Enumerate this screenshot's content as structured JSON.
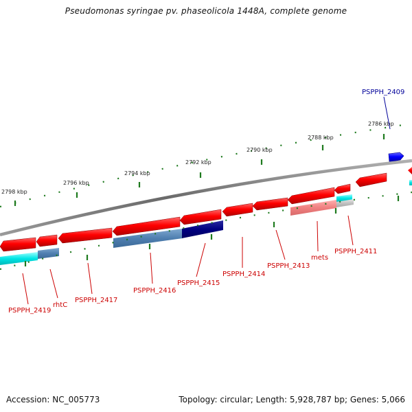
{
  "title": "Pseudomonas syringae pv. phaseolicola 1448A, complete genome",
  "footer": {
    "accession": "Accession: NC_005773",
    "summary": "Topology: circular; Length: 5,928,787 bp; Genes: 5,066"
  },
  "scale_labels": [
    "2798 kbp",
    "2796 kbp",
    "2794 kbp",
    "2792 kbp",
    "2790 kbp",
    "2788 kbp",
    "2786 kbp"
  ],
  "genes": [
    {
      "name": "PSPPH_2409",
      "strand": "forward",
      "color": "#0000cc"
    },
    {
      "name": "PSPPH_2411",
      "strand": "reverse",
      "color": "#cc0000"
    },
    {
      "name": "mets",
      "strand": "reverse",
      "color": "#cc0000"
    },
    {
      "name": "PSPPH_2413",
      "strand": "reverse",
      "color": "#cc0000"
    },
    {
      "name": "PSPPH_2414",
      "strand": "reverse",
      "color": "#cc0000"
    },
    {
      "name": "PSPPH_2415",
      "strand": "reverse",
      "color": "#cc0000"
    },
    {
      "name": "PSPPH_2416",
      "strand": "reverse",
      "color": "#cc0000"
    },
    {
      "name": "PSPPH_2417",
      "strand": "reverse",
      "color": "#cc0000"
    },
    {
      "name": "rhtC",
      "strand": "reverse",
      "color": "#cc0000"
    },
    {
      "name": "PSPPH_2419",
      "strand": "reverse",
      "color": "#cc0000"
    }
  ],
  "colors": {
    "reverse_gene": "#ff0000",
    "forward_gene": "#0000ff",
    "backbone": "#808080",
    "ticks": "#1e7a1e",
    "gene_label": "#cc0000",
    "forward_label": "#000099"
  }
}
